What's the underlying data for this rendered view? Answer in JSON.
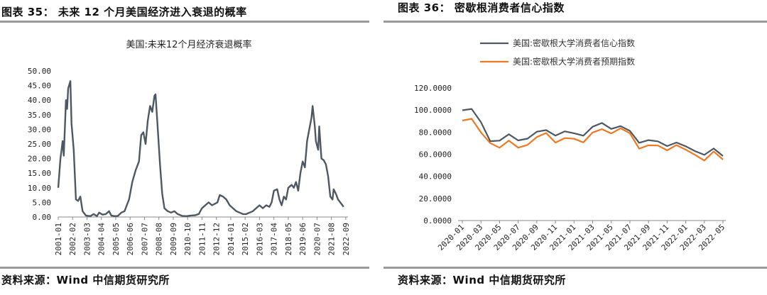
{
  "left_figure": {
    "heading": "图表 35： 未来 12 个月美国经济进入衰退的概率",
    "source": "资料来源：Wind  中信期货研究所"
  },
  "right_figure": {
    "heading": "图表 36： 密歇根消费者信心指数",
    "source": "资料来源：Wind  中信期货研究所"
  },
  "colors": {
    "gray_series": "#4e5862",
    "orange_series": "#f07820",
    "rule": "#9a9a9a"
  },
  "chart_data": [
    {
      "type": "line",
      "title": "美国:未来12个月经济衰退概率",
      "xlabel": "",
      "ylabel": "",
      "ylim": [
        0,
        50
      ],
      "y_ticks": [
        "0.00",
        "5.00",
        "10.00",
        "15.00",
        "20.00",
        "25.00",
        "30.00",
        "35.00",
        "40.00",
        "45.00",
        "50.00"
      ],
      "x_ticks": [
        "2001-01",
        "2002-02",
        "2003-03",
        "2004-04",
        "2005-05",
        "2006-06",
        "2007-07",
        "2008-08",
        "2009-09",
        "2010-10",
        "2011-11",
        "2012-12",
        "2014-01",
        "2015-02",
        "2016-03",
        "2017-04",
        "2018-05",
        "2019-06",
        "2020-07",
        "2021-08",
        "2022-09"
      ],
      "x_domain": [
        "2001-01",
        "2022-11"
      ],
      "series": [
        {
          "name": "",
          "color": "#4e5862",
          "points": [
            [
              "2001-01",
              10
            ],
            [
              "2001-03",
              20
            ],
            [
              "2001-05",
              26
            ],
            [
              "2001-06",
              21
            ],
            [
              "2001-08",
              40
            ],
            [
              "2001-09",
              37
            ],
            [
              "2001-10",
              44
            ],
            [
              "2001-12",
              46.5
            ],
            [
              "2002-01",
              32
            ],
            [
              "2002-03",
              23
            ],
            [
              "2002-05",
              6
            ],
            [
              "2002-07",
              5.5
            ],
            [
              "2002-09",
              7
            ],
            [
              "2002-11",
              2
            ],
            [
              "2003-02",
              0.5
            ],
            [
              "2003-06",
              0.3
            ],
            [
              "2003-09",
              1
            ],
            [
              "2003-12",
              0.3
            ],
            [
              "2004-02",
              1.5
            ],
            [
              "2004-05",
              0.8
            ],
            [
              "2004-08",
              1
            ],
            [
              "2004-11",
              2
            ],
            [
              "2005-01",
              0.5
            ],
            [
              "2005-04",
              0.3
            ],
            [
              "2005-07",
              0.4
            ],
            [
              "2005-10",
              1.5
            ],
            [
              "2006-01",
              2
            ],
            [
              "2006-03",
              4
            ],
            [
              "2006-05",
              6
            ],
            [
              "2006-08",
              12
            ],
            [
              "2006-11",
              16
            ],
            [
              "2007-02",
              19
            ],
            [
              "2007-04",
              28
            ],
            [
              "2007-06",
              29
            ],
            [
              "2007-08",
              25
            ],
            [
              "2007-10",
              33
            ],
            [
              "2007-12",
              38
            ],
            [
              "2008-02",
              36
            ],
            [
              "2008-04",
              41.5
            ],
            [
              "2008-05",
              42
            ],
            [
              "2008-07",
              30
            ],
            [
              "2008-09",
              18
            ],
            [
              "2008-11",
              8
            ],
            [
              "2009-01",
              3
            ],
            [
              "2009-04",
              2
            ],
            [
              "2009-07",
              1.5
            ],
            [
              "2009-10",
              2
            ],
            [
              "2010-01",
              1
            ],
            [
              "2010-05",
              0.4
            ],
            [
              "2010-09",
              0.3
            ],
            [
              "2011-01",
              0.5
            ],
            [
              "2011-05",
              0.6
            ],
            [
              "2011-08",
              1
            ],
            [
              "2011-11",
              3
            ],
            [
              "2012-02",
              4
            ],
            [
              "2012-05",
              5
            ],
            [
              "2012-08",
              4
            ],
            [
              "2013-01",
              5
            ],
            [
              "2013-03",
              7.5
            ],
            [
              "2013-06",
              7
            ],
            [
              "2013-09",
              6
            ],
            [
              "2013-12",
              4
            ],
            [
              "2014-03",
              3
            ],
            [
              "2014-06",
              2
            ],
            [
              "2014-09",
              1.5
            ],
            [
              "2014-12",
              1
            ],
            [
              "2015-03",
              1
            ],
            [
              "2015-06",
              1.5
            ],
            [
              "2015-09",
              2
            ],
            [
              "2015-12",
              3
            ],
            [
              "2016-03",
              4
            ],
            [
              "2016-06",
              3
            ],
            [
              "2016-09",
              4
            ],
            [
              "2016-12",
              3.5
            ],
            [
              "2017-02",
              5
            ],
            [
              "2017-04",
              9
            ],
            [
              "2017-07",
              9.5
            ],
            [
              "2017-09",
              6
            ],
            [
              "2017-11",
              4
            ],
            [
              "2018-01",
              7
            ],
            [
              "2018-03",
              6
            ],
            [
              "2018-05",
              10
            ],
            [
              "2018-08",
              11
            ],
            [
              "2018-10",
              10
            ],
            [
              "2018-12",
              12
            ],
            [
              "2019-02",
              9
            ],
            [
              "2019-04",
              15
            ],
            [
              "2019-06",
              19
            ],
            [
              "2019-08",
              17
            ],
            [
              "2019-10",
              26
            ],
            [
              "2019-12",
              30
            ],
            [
              "2020-02",
              34
            ],
            [
              "2020-03",
              38
            ],
            [
              "2020-05",
              31
            ],
            [
              "2020-06",
              26
            ],
            [
              "2020-08",
              23
            ],
            [
              "2020-09",
              31
            ],
            [
              "2020-11",
              20
            ],
            [
              "2021-01",
              19.5
            ],
            [
              "2021-03",
              18
            ],
            [
              "2021-05",
              14
            ],
            [
              "2021-07",
              7
            ],
            [
              "2021-09",
              6
            ],
            [
              "2021-10",
              9.5
            ],
            [
              "2021-12",
              8
            ],
            [
              "2022-02",
              6
            ],
            [
              "2022-04",
              5
            ],
            [
              "2022-05",
              4.5
            ],
            [
              "2022-07",
              3.5
            ]
          ]
        }
      ]
    },
    {
      "type": "line",
      "title": "",
      "xlabel": "",
      "ylabel": "",
      "ylim": [
        0,
        120
      ],
      "y_ticks": [
        "0.0000",
        "20.0000",
        "40.0000",
        "60.0000",
        "80.0000",
        "100.0000",
        "120.0000"
      ],
      "x_ticks": [
        "2020-01",
        "2020-03",
        "2020-05",
        "2020-07",
        "2020-09",
        "2020-11",
        "2021-01",
        "2021-03",
        "2021-05",
        "2021-07",
        "2021-09",
        "2021-11",
        "2022-01",
        "2022-03",
        "2022-05"
      ],
      "categories": [
        "2020-01",
        "2020-02",
        "2020-03",
        "2020-04",
        "2020-05",
        "2020-06",
        "2020-07",
        "2020-08",
        "2020-09",
        "2020-10",
        "2020-11",
        "2020-12",
        "2021-01",
        "2021-02",
        "2021-03",
        "2021-04",
        "2021-05",
        "2021-06",
        "2021-07",
        "2021-08",
        "2021-09",
        "2021-10",
        "2021-11",
        "2021-12",
        "2022-01",
        "2022-02",
        "2022-03",
        "2022-04",
        "2022-05"
      ],
      "legend_position": "top",
      "series": [
        {
          "name": "美国:密歇根大学消费者信心指数",
          "color": "#4e5862",
          "values": [
            99.8,
            101.0,
            89.1,
            71.8,
            72.3,
            78.1,
            72.5,
            74.1,
            80.4,
            81.8,
            76.9,
            80.7,
            79.0,
            76.8,
            84.9,
            88.3,
            82.9,
            85.5,
            81.2,
            70.3,
            72.8,
            71.7,
            67.4,
            70.6,
            67.2,
            62.8,
            59.4,
            65.2,
            58.4
          ]
        },
        {
          "name": "美国:密歇根大学消费者预期指数",
          "color": "#f07820",
          "values": [
            90.5,
            92.1,
            79.7,
            70.1,
            65.9,
            72.3,
            65.9,
            68.5,
            75.6,
            79.2,
            70.5,
            74.6,
            74.0,
            70.7,
            79.7,
            82.7,
            78.8,
            83.5,
            79.0,
            65.1,
            68.1,
            67.9,
            63.5,
            68.3,
            64.1,
            59.4,
            54.3,
            62.5,
            55.2
          ]
        }
      ]
    }
  ]
}
